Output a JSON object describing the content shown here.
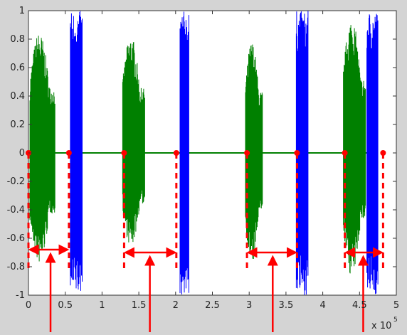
{
  "chart_data": {
    "type": "line",
    "title": "",
    "xlabel": "",
    "ylabel": "",
    "x_exponent_label": "x 10",
    "x_exponent": "5",
    "xlim": [
      0,
      5
    ],
    "ylim": [
      -1,
      1
    ],
    "x_ticks": [
      0,
      0.5,
      1,
      1.5,
      2,
      2.5,
      3,
      3.5,
      4,
      4.5,
      5
    ],
    "x_tick_labels": [
      "0",
      "0.5",
      "1",
      "1.5",
      "2",
      "2.5",
      "3",
      "3.5",
      "4",
      "4.5",
      "5"
    ],
    "y_ticks": [
      1,
      0.8,
      0.6,
      0.4,
      0.2,
      0,
      -0.2,
      -0.4,
      -0.6,
      -0.8,
      -1
    ],
    "y_tick_labels": [
      "1",
      "0.8",
      "0.6",
      "0.4",
      "0.2",
      "0",
      "-0.2",
      "-0.4",
      "-0.6",
      "-0.8",
      "-1"
    ],
    "grid": false,
    "baseline": {
      "color": "#008000",
      "x_range": [
        0,
        4.73
      ],
      "y": 0
    },
    "series": [
      {
        "color": "#008000",
        "segments": [
          {
            "x_start": 0.02,
            "x_end": 0.36,
            "y_max": 0.85,
            "y_min": -0.78
          },
          {
            "x_start": 1.28,
            "x_end": 1.58,
            "y_max": 0.83,
            "y_min": -0.66
          },
          {
            "x_start": 2.95,
            "x_end": 3.18,
            "y_max": 0.79,
            "y_min": -0.79
          },
          {
            "x_start": 4.28,
            "x_end": 4.58,
            "y_max": 0.96,
            "y_min": -0.87
          }
        ]
      },
      {
        "color": "#0000ff",
        "segments": [
          {
            "x_start": 0.57,
            "x_end": 0.73,
            "y_max": 1.0,
            "y_min": -1.0
          },
          {
            "x_start": 2.06,
            "x_end": 2.18,
            "y_max": 1.0,
            "y_min": -1.0
          },
          {
            "x_start": 3.64,
            "x_end": 3.8,
            "y_max": 1.0,
            "y_min": -1.0
          },
          {
            "x_start": 4.6,
            "x_end": 4.75,
            "y_max": 1.0,
            "y_min": -1.0
          }
        ]
      }
    ],
    "annotations": {
      "color": "#ff0000",
      "detected_points_x": [
        0.0,
        0.55,
        1.3,
        2.01,
        2.97,
        3.65,
        4.3,
        4.82
      ],
      "intervals": [
        {
          "x_start": 0.0,
          "x_end": 0.55,
          "y_level": -0.68,
          "arrow_x": 0.3
        },
        {
          "x_start": 1.3,
          "x_end": 2.01,
          "y_level": -0.7,
          "arrow_x": 1.65
        },
        {
          "x_start": 2.97,
          "x_end": 3.65,
          "y_level": -0.7,
          "arrow_x": 3.32
        },
        {
          "x_start": 4.3,
          "x_end": 4.82,
          "y_level": -0.7,
          "arrow_x": 4.55
        }
      ]
    }
  }
}
